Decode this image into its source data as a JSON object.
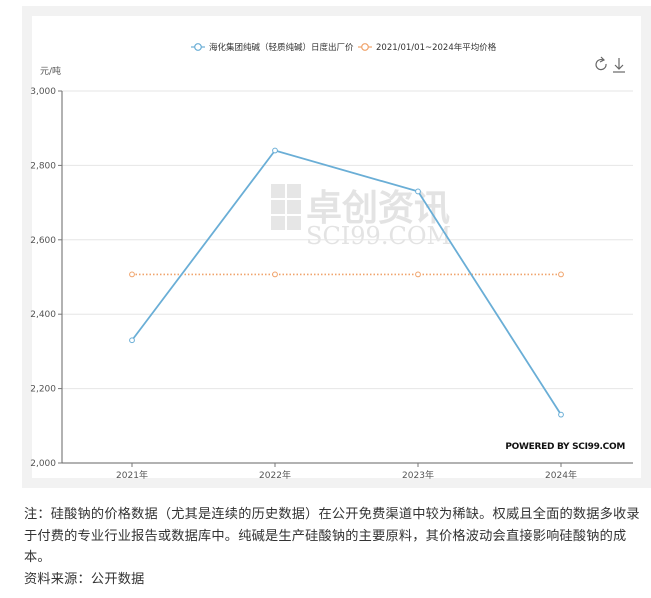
{
  "chart_data": {
    "type": "line",
    "unit_label": "元/吨",
    "categories": [
      "2021年",
      "2022年",
      "2023年",
      "2024年"
    ],
    "series": [
      {
        "name": "海化集团纯碱（轻质纯碱）日度出厂价",
        "values": [
          2330,
          2840,
          2730,
          2130
        ],
        "color": "#6aaed6"
      },
      {
        "name": "2021/01/01~2024年平均价格",
        "values": [
          2507,
          2507,
          2507,
          2507
        ],
        "color": "#f0a36b",
        "style": "dotted"
      }
    ],
    "y_ticks": [
      "3,000",
      "2,800",
      "2,600",
      "2,400",
      "2,200",
      "2,000"
    ],
    "ylim": [
      2000,
      3000
    ],
    "grid": true,
    "legend_position": "top-center",
    "powered_by": "POWERED BY SCI99.COM",
    "watermark": {
      "cn": "卓创资讯",
      "en": "SCI99.COM"
    },
    "toolbar": {
      "refresh_icon": "refresh-icon",
      "download_icon": "download-icon"
    }
  },
  "note": {
    "line1": "注：硅酸钠的价格数据（尤其是连续的历史数据）在公开免费渠道中较为稀缺。权威且全面的数据多收录于付费的专业行业报告或数据库中。纯碱是生产硅酸钠的主要原料，其价格波动会直接影响硅酸钠的成本。",
    "source": "资料来源：公开数据"
  }
}
